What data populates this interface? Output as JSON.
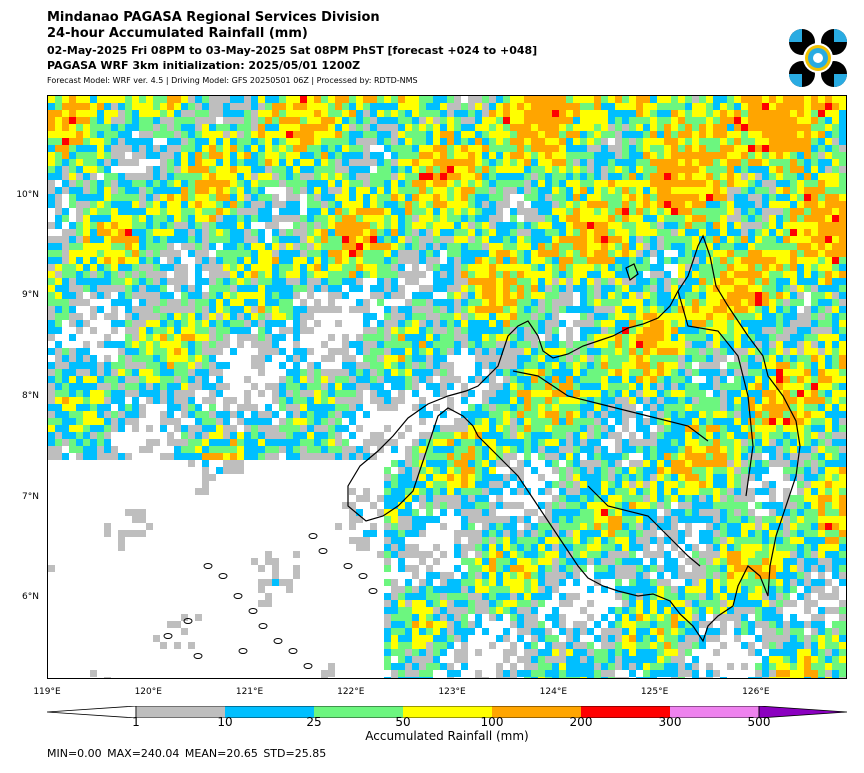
{
  "header": {
    "title_line1": "Mindanao PAGASA Regional Services Division",
    "title_line2": "24-hour Accumulated Rainfall (mm)",
    "valid_period": "02-May-2025 Fri 08PM to 03-May-2025 Sat 08PM PhST [forecast +024 to +048]",
    "initialization": "PAGASA WRF 3km initialization: 2025/05/01 1200Z",
    "model_info": "Forecast Model: WRF ver. 4.5 | Driving Model: GFS 20250501 06Z | Processed by: RDTD-NMS"
  },
  "logo": {
    "name": "pagasa-logo-icon",
    "colors": [
      "#000000",
      "#29abe2",
      "#f2c200",
      "#ffffff"
    ]
  },
  "map": {
    "lat_labels": [
      "10°N",
      "9°N",
      "8°N",
      "7°N",
      "6°N"
    ],
    "lon_labels": [
      "119°E",
      "120°E",
      "121°E",
      "122°E",
      "123°E",
      "124°E",
      "125°E",
      "126°E"
    ],
    "extent": {
      "lon": [
        119.0,
        126.9
      ],
      "lat": [
        5.2,
        11.0
      ]
    }
  },
  "colorbar": {
    "tick_labels": [
      "1",
      "10",
      "25",
      "50",
      "100",
      "200",
      "300",
      "500"
    ],
    "colors": [
      "#bebebe",
      "#00bfff",
      "#6cf67f",
      "#ffff00",
      "#ffa500",
      "#ff0000",
      "#ee82ee",
      "#8b00c0"
    ],
    "label": "Accumulated Rainfall (mm)"
  },
  "stats": {
    "text": "MIN=0.00   MAX=240.04   MEAN=20.65   STD=25.85"
  }
}
